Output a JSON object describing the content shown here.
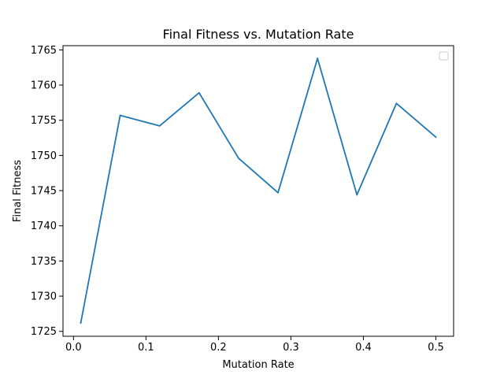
{
  "chart_data": {
    "type": "line",
    "title": "Final Fitness vs. Mutation Rate",
    "xlabel": "Mutation Rate",
    "ylabel": "Final Fitness",
    "xlim": [
      -0.0145,
      0.5245
    ],
    "ylim": [
      1724.3,
      1765.6
    ],
    "xticks": [
      0.0,
      0.1,
      0.2,
      0.3,
      0.4,
      0.5
    ],
    "xtick_labels": [
      "0.0",
      "0.1",
      "0.2",
      "0.3",
      "0.4",
      "0.5"
    ],
    "yticks": [
      1725,
      1730,
      1735,
      1740,
      1745,
      1750,
      1755,
      1760,
      1765
    ],
    "ytick_labels": [
      "1725",
      "1730",
      "1735",
      "1740",
      "1745",
      "1750",
      "1755",
      "1760",
      "1765"
    ],
    "grid": false,
    "legend": "top-right, empty",
    "series": [
      {
        "color": "#1f77b4",
        "x": [
          0.01,
          0.0644,
          0.1189,
          0.1733,
          0.2278,
          0.2822,
          0.3367,
          0.3911,
          0.4456,
          0.5
        ],
        "y": [
          1726.2,
          1755.7,
          1754.2,
          1758.9,
          1749.6,
          1744.7,
          1763.8,
          1744.4,
          1757.4,
          1752.6
        ]
      }
    ]
  }
}
